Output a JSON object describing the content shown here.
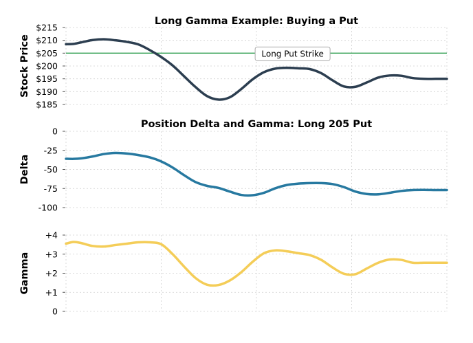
{
  "chart_data": [
    {
      "type": "line",
      "title": "Long Gamma Example: Buying a Put",
      "ylabel": "Stock Price",
      "ylim": [
        185,
        215
      ],
      "yticks": [
        185,
        190,
        195,
        200,
        205,
        210,
        215
      ],
      "ytick_labels": [
        "$185",
        "$190",
        "$195",
        "$200",
        "$205",
        "$210",
        "$215"
      ],
      "grid": true,
      "x": [
        0,
        2,
        4,
        7,
        10,
        13,
        16,
        19,
        22,
        25,
        28,
        31,
        34,
        37,
        40,
        43,
        46,
        49,
        52,
        55,
        58,
        61,
        64,
        67,
        70,
        73,
        76,
        79,
        82,
        85,
        88,
        91,
        94,
        97,
        100
      ],
      "series": [
        {
          "color": "#2c3e50",
          "values": [
            208.5,
            208.6,
            209.2,
            210.1,
            210.4,
            210.0,
            209.4,
            208.4,
            206.2,
            203.5,
            200.2,
            196.0,
            191.8,
            188.3,
            186.9,
            187.8,
            191.0,
            194.8,
            197.6,
            199.0,
            199.3,
            199.1,
            198.8,
            197.2,
            194.4,
            192.0,
            191.9,
            193.6,
            195.5,
            196.3,
            196.2,
            195.3,
            195.0,
            195.0,
            195.0
          ]
        }
      ],
      "hlines": [
        {
          "y": 205,
          "color": "#2e9e4f"
        }
      ],
      "annotation": {
        "text": "Long Put Strike",
        "x": 59.5,
        "y": 205
      }
    },
    {
      "type": "line",
      "title": "Position Delta and Gamma: Long 205 Put",
      "ylabel": "Delta",
      "ylim": [
        -100,
        0
      ],
      "yticks": [
        -100,
        -75,
        -50,
        -25,
        0
      ],
      "ytick_labels": [
        "-100",
        "-75",
        "-50",
        "-25",
        "0"
      ],
      "grid": true,
      "x": [
        0,
        2,
        4,
        7,
        10,
        13,
        16,
        19,
        22,
        25,
        28,
        31,
        34,
        37,
        40,
        43,
        46,
        49,
        52,
        55,
        58,
        61,
        64,
        67,
        70,
        73,
        76,
        79,
        82,
        85,
        88,
        91,
        94,
        97,
        100
      ],
      "series": [
        {
          "color": "#2779a0",
          "values": [
            -36.0,
            -36.2,
            -35.5,
            -33.0,
            -29.8,
            -28.4,
            -29.2,
            -31.2,
            -34.2,
            -39.5,
            -47.5,
            -57.5,
            -66.5,
            -71.5,
            -74.2,
            -79.0,
            -83.4,
            -83.8,
            -80.6,
            -74.6,
            -70.4,
            -68.6,
            -67.9,
            -67.9,
            -69.2,
            -73.2,
            -79.0,
            -82.2,
            -82.6,
            -80.6,
            -78.2,
            -77.0,
            -76.8,
            -77.0,
            -77.0
          ]
        }
      ]
    },
    {
      "type": "line",
      "title": "",
      "ylabel": "Gamma",
      "ylim": [
        0,
        4
      ],
      "yticks": [
        0,
        1,
        2,
        3,
        4
      ],
      "ytick_labels": [
        "0",
        "+1",
        "+2",
        "+3",
        "+4"
      ],
      "grid": true,
      "x": [
        0,
        2,
        4,
        7,
        10,
        13,
        16,
        19,
        22,
        25,
        28,
        31,
        34,
        37,
        40,
        43,
        46,
        49,
        52,
        55,
        58,
        61,
        64,
        67,
        70,
        73,
        76,
        79,
        82,
        85,
        88,
        91,
        94,
        97,
        100
      ],
      "series": [
        {
          "color": "#f4cd58",
          "values": [
            3.55,
            3.64,
            3.58,
            3.43,
            3.4,
            3.48,
            3.55,
            3.62,
            3.62,
            3.52,
            3.0,
            2.35,
            1.75,
            1.4,
            1.38,
            1.62,
            2.05,
            2.6,
            3.05,
            3.2,
            3.15,
            3.05,
            2.95,
            2.7,
            2.3,
            1.97,
            1.95,
            2.25,
            2.55,
            2.72,
            2.7,
            2.55,
            2.55,
            2.55,
            2.55
          ]
        }
      ]
    }
  ]
}
